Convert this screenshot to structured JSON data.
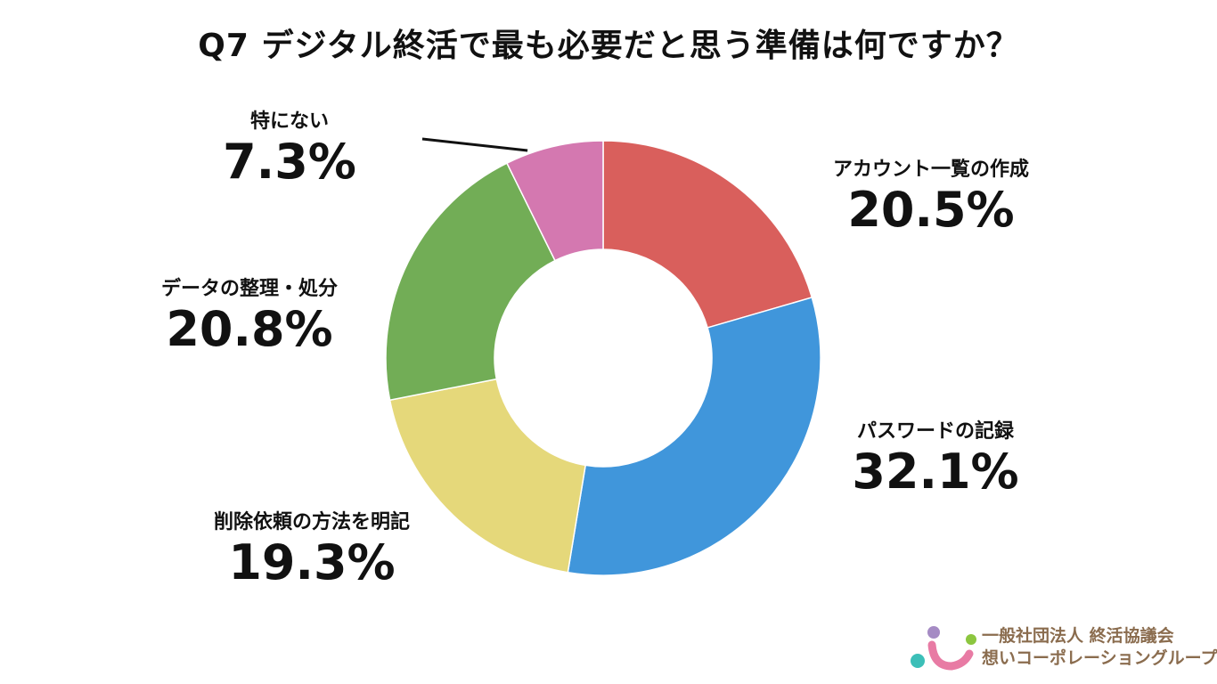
{
  "title": "Q7 デジタル終活で最も必要だと思う準備は何ですか？",
  "chart_data": {
    "type": "donut",
    "title": "Q7 デジタル終活で最も必要だと思う準備は何ですか？",
    "categories": [
      "アカウント一覧の作成",
      "パスワードの記録",
      "削除依頼の方法を明記",
      "データの整理・処分",
      "特にない"
    ],
    "values": [
      20.5,
      32.1,
      19.3,
      20.8,
      7.3
    ],
    "labels": [
      "20.5%",
      "32.1%",
      "19.3%",
      "20.8%",
      "7.3%"
    ],
    "colors": [
      "#d95f5c",
      "#4096db",
      "#e5d87a",
      "#72ad56",
      "#d478b0"
    ],
    "start": "12 o'clock, clockwise"
  },
  "logo": {
    "line1": "一般社団法人 終活協議会",
    "line2": "想いコーポレーショングループ"
  }
}
